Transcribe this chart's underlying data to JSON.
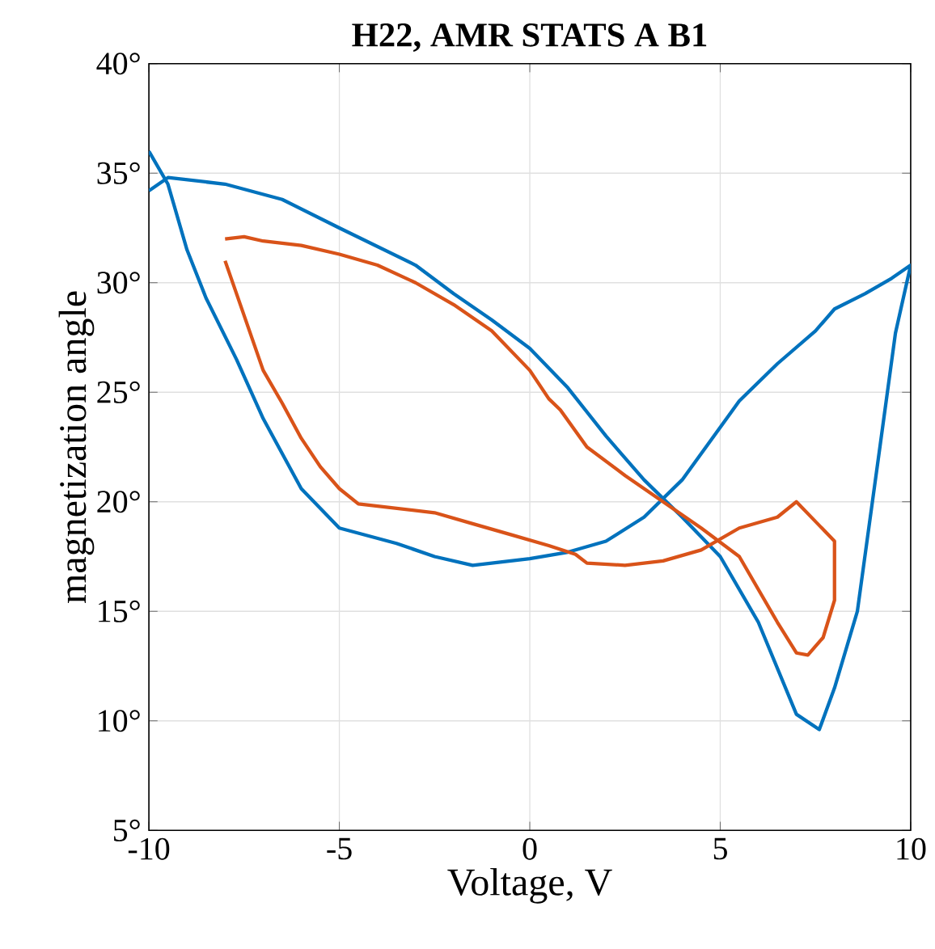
{
  "chart_data": {
    "type": "line",
    "title": "H22, AMR STATS A B1",
    "xlabel": "Voltage, V",
    "ylabel": "magnetization angle",
    "xlim": [
      -10,
      10
    ],
    "ylim": [
      5,
      40
    ],
    "xticks": [
      -10,
      -5,
      0,
      5,
      10
    ],
    "yticks": [
      {
        "value": 5,
        "label": "5°"
      },
      {
        "value": 10,
        "label": "10°"
      },
      {
        "value": 15,
        "label": "15°"
      },
      {
        "value": 20,
        "label": "20°"
      },
      {
        "value": 25,
        "label": "25°"
      },
      {
        "value": 30,
        "label": "30°"
      },
      {
        "value": 35,
        "label": "35°"
      },
      {
        "value": 40,
        "label": "40°"
      }
    ],
    "grid": true,
    "marker": "none",
    "line_style": "solid",
    "series": [
      {
        "color": "#0072bd",
        "x": [
          -10,
          -9.5,
          -8,
          -6.5,
          -5,
          -3,
          -2,
          -1,
          0,
          1,
          2,
          3,
          4,
          5,
          6,
          7,
          7.6,
          8,
          8.6,
          9.2,
          9.6,
          10,
          9.5,
          8.8,
          8,
          7.5,
          6.5,
          5.5,
          4,
          3,
          2,
          1,
          0,
          -1.5,
          -2.5,
          -3.5,
          -5,
          -6,
          -7,
          -7.7,
          -8.5,
          -9,
          -9.5,
          -10
        ],
        "values": [
          34.2,
          34.8,
          34.5,
          33.8,
          32.5,
          30.8,
          29.5,
          28.3,
          27,
          25.2,
          23,
          21,
          19.3,
          17.5,
          14.5,
          10.3,
          9.6,
          11.5,
          15,
          22.6,
          27.7,
          30.8,
          30.2,
          29.5,
          28.8,
          27.8,
          26.3,
          24.6,
          21,
          19.3,
          18.2,
          17.7,
          17.4,
          17.1,
          17.5,
          18.1,
          18.8,
          20.6,
          23.8,
          26.5,
          29.3,
          31.5,
          34.5,
          36
        ]
      },
      {
        "color": "#d95319",
        "x": [
          -8,
          -7.5,
          -7,
          -6.5,
          -6,
          -5.5,
          -5,
          -4.5,
          -3.5,
          -2.5,
          -1.5,
          -0.5,
          0.5,
          1.2,
          1.5,
          2.5,
          3.5,
          4.5,
          5.5,
          6.5,
          7,
          7.5,
          8,
          8,
          7.7,
          7.3,
          7,
          6.5,
          5.5,
          4.5,
          3.5,
          2.5,
          1.5,
          0.8,
          0.5,
          0,
          -1,
          -2,
          -3,
          -4,
          -5,
          -6,
          -7,
          -7.5,
          -8
        ],
        "values": [
          31,
          28.5,
          26,
          24.5,
          22.9,
          21.6,
          20.6,
          19.9,
          19.7,
          19.5,
          19,
          18.5,
          18,
          17.6,
          17.2,
          17.1,
          17.3,
          17.8,
          18.8,
          19.3,
          20,
          19.1,
          18.2,
          15.5,
          13.8,
          13,
          13.1,
          14.5,
          17.5,
          18.8,
          20,
          21.2,
          22.5,
          24.2,
          24.7,
          26,
          27.8,
          29,
          30,
          30.8,
          31.3,
          31.7,
          31.9,
          32.1,
          32
        ]
      }
    ]
  }
}
